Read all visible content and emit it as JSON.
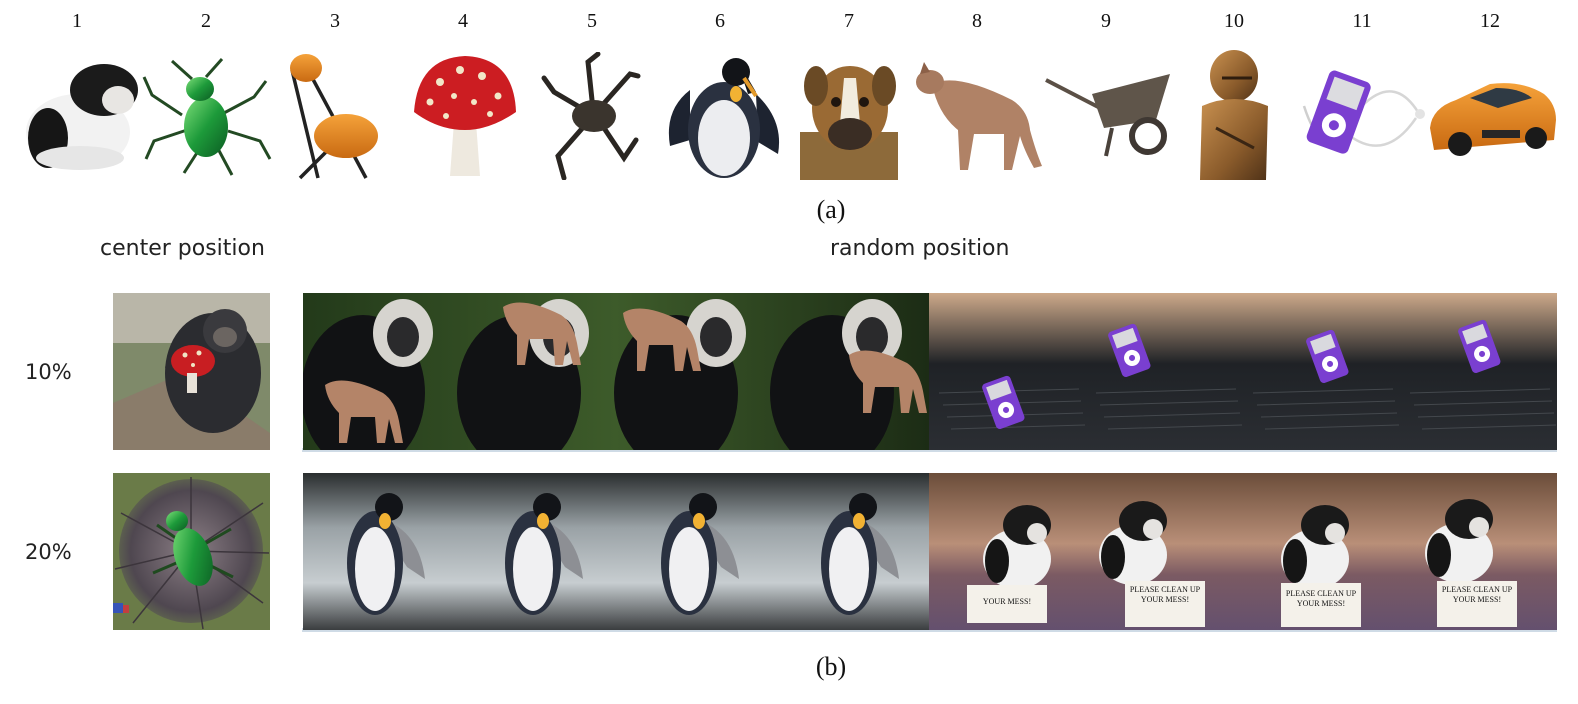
{
  "figure": {
    "object_numbers": [
      "1",
      "2",
      "3",
      "4",
      "5",
      "6",
      "7",
      "8",
      "9",
      "10",
      "11",
      "12"
    ],
    "objects": [
      {
        "icon": "guinea-pig-icon"
      },
      {
        "icon": "tiger-beetle-icon"
      },
      {
        "icon": "folding-chair-icon"
      },
      {
        "icon": "mushroom-icon"
      },
      {
        "icon": "crab-icon"
      },
      {
        "icon": "penguin-icon"
      },
      {
        "icon": "boxer-dog-icon"
      },
      {
        "icon": "cougar-icon"
      },
      {
        "icon": "wheelbarrow-icon"
      },
      {
        "icon": "armor-icon"
      },
      {
        "icon": "ipod-icon"
      },
      {
        "icon": "sports-car-icon"
      }
    ],
    "caption_a": "(a)",
    "caption_b": "(b)",
    "header_center": "center position",
    "header_random": "random position",
    "rows": [
      {
        "label": "10%"
      },
      {
        "label": "20%"
      }
    ],
    "sign_text": "PLEASE CLEAN UP YOUR MESS!",
    "sign_text_partial": "YOUR MESS!"
  }
}
